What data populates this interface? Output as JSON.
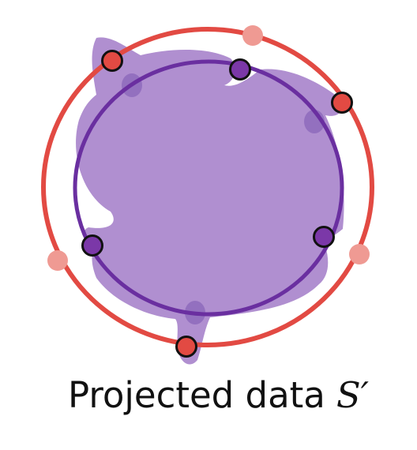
{
  "caption": {
    "text": "Projected data",
    "symbol": "S′"
  },
  "colors": {
    "background": "#ffffff",
    "blob_fill": "#b08fd0",
    "blob_shadow": "#9370bf",
    "outer_circle": "#e24a43",
    "inner_circle": "#6a2fa0",
    "red_point": "#e24a43",
    "red_point_faded": "#ef9a93",
    "purple_point": "#7b38a8",
    "point_outline": "#111111",
    "text": "#111111"
  }
}
